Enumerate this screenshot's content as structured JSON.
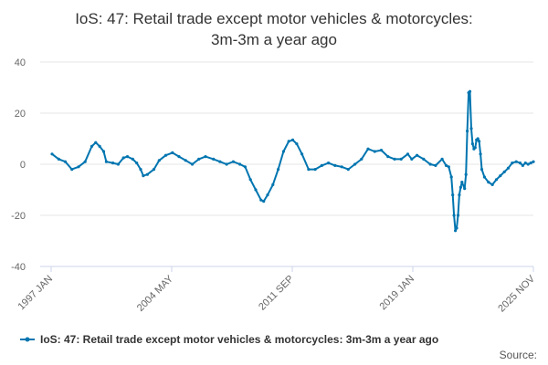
{
  "chart_data": {
    "type": "line",
    "title_lines": [
      "IoS: 47: Retail trade except motor vehicles & motorcycles:",
      "3m-3m a year ago"
    ],
    "ylim": [
      -40,
      40
    ],
    "y_ticks": [
      40,
      20,
      0,
      -20,
      -40
    ],
    "x_tick_labels": [
      "1997 JAN",
      "2004 MAY",
      "2011 SEP",
      "2019 JAN",
      "2025 NOV"
    ],
    "series": [
      {
        "name": "IoS: 47: Retail trade except motor vehicles & motorcycles: 3m-3m a year ago",
        "color": "#0075b0",
        "points": [
          [
            "1997-01",
            4.0
          ],
          [
            "1997-06",
            2.0
          ],
          [
            "1997-11",
            1.0
          ],
          [
            "1998-04",
            -2.0
          ],
          [
            "1998-09",
            -1.0
          ],
          [
            "1999-02",
            1.0
          ],
          [
            "1999-07",
            7.0
          ],
          [
            "1999-10",
            8.5
          ],
          [
            "2000-01",
            7.0
          ],
          [
            "2000-04",
            5.0
          ],
          [
            "2000-06",
            1.0
          ],
          [
            "2000-11",
            0.5
          ],
          [
            "2001-03",
            0.0
          ],
          [
            "2001-07",
            2.5
          ],
          [
            "2001-10",
            3.0
          ],
          [
            "2002-02",
            2.0
          ],
          [
            "2002-05",
            0.5
          ],
          [
            "2002-08",
            -2.0
          ],
          [
            "2002-10",
            -4.5
          ],
          [
            "2003-01",
            -4.0
          ],
          [
            "2003-06",
            -2.0
          ],
          [
            "2003-10",
            1.5
          ],
          [
            "2004-03",
            3.5
          ],
          [
            "2004-08",
            4.5
          ],
          [
            "2005-01",
            3.0
          ],
          [
            "2005-06",
            1.5
          ],
          [
            "2005-11",
            0.0
          ],
          [
            "2006-04",
            2.0
          ],
          [
            "2006-09",
            3.0
          ],
          [
            "2007-03",
            2.0
          ],
          [
            "2007-08",
            1.0
          ],
          [
            "2008-01",
            0.0
          ],
          [
            "2008-06",
            1.0
          ],
          [
            "2008-11",
            0.0
          ],
          [
            "2009-03",
            -1.0
          ],
          [
            "2009-07",
            -6.0
          ],
          [
            "2009-11",
            -10.0
          ],
          [
            "2010-03",
            -14.0
          ],
          [
            "2010-05",
            -14.5
          ],
          [
            "2010-08",
            -12.0
          ],
          [
            "2010-12",
            -8.0
          ],
          [
            "2011-04",
            -2.0
          ],
          [
            "2011-08",
            5.0
          ],
          [
            "2011-12",
            9.0
          ],
          [
            "2012-03",
            9.5
          ],
          [
            "2012-06",
            8.0
          ],
          [
            "2012-10",
            4.0
          ],
          [
            "2013-03",
            -2.0
          ],
          [
            "2013-08",
            -2.0
          ],
          [
            "2014-01",
            -0.5
          ],
          [
            "2014-06",
            0.5
          ],
          [
            "2014-11",
            -0.5
          ],
          [
            "2015-04",
            -1.0
          ],
          [
            "2015-09",
            -2.0
          ],
          [
            "2016-02",
            0.0
          ],
          [
            "2016-07",
            2.0
          ],
          [
            "2016-12",
            6.0
          ],
          [
            "2017-05",
            5.0
          ],
          [
            "2017-10",
            5.5
          ],
          [
            "2018-03",
            3.0
          ],
          [
            "2018-08",
            2.0
          ],
          [
            "2019-01",
            2.0
          ],
          [
            "2019-06",
            4.0
          ],
          [
            "2019-09",
            2.0
          ],
          [
            "2020-01",
            3.5
          ],
          [
            "2020-06",
            2.0
          ],
          [
            "2020-11",
            0.0
          ],
          [
            "2021-03",
            -0.5
          ],
          [
            "2021-08",
            2.0
          ],
          [
            "2021-11",
            -0.5
          ],
          [
            "2022-01",
            -1.0
          ],
          [
            "2022-03",
            -5.0
          ],
          [
            "2022-04",
            -12.0
          ],
          [
            "2022-05",
            -20.0
          ],
          [
            "2022-06",
            -26.0
          ],
          [
            "2022-07",
            -25.0
          ],
          [
            "2022-08",
            -20.0
          ],
          [
            "2022-09",
            -12.0
          ],
          [
            "2022-10",
            -9.0
          ],
          [
            "2022-11",
            -7.0
          ],
          [
            "2023-01",
            -9.5
          ],
          [
            "2023-02",
            -4.0
          ],
          [
            "2023-03",
            13.0
          ],
          [
            "2023-04",
            28.0
          ],
          [
            "2023-05",
            28.5
          ],
          [
            "2023-06",
            14.0
          ],
          [
            "2023-07",
            8.0
          ],
          [
            "2023-08",
            6.0
          ],
          [
            "2023-09",
            6.5
          ],
          [
            "2023-10",
            9.5
          ],
          [
            "2023-11",
            10.0
          ],
          [
            "2023-12",
            9.0
          ],
          [
            "2024-01",
            4.0
          ],
          [
            "2024-02",
            -2.0
          ],
          [
            "2024-04",
            -5.0
          ],
          [
            "2024-07",
            -7.0
          ],
          [
            "2024-10",
            -8.0
          ],
          [
            "2025-01",
            -6.0
          ],
          [
            "2025-04",
            -4.5
          ],
          [
            "2025-07",
            -3.0
          ],
          [
            "2025-10",
            -1.5
          ],
          [
            "2026-01",
            0.5
          ],
          [
            "2026-04",
            1.0
          ],
          [
            "2026-07",
            0.5
          ],
          [
            "2026-09",
            -0.5
          ],
          [
            "2026-11",
            0.5
          ],
          [
            "2027-01",
            0.0
          ],
          [
            "2027-03",
            0.5
          ],
          [
            "2027-05",
            1.0
          ]
        ]
      }
    ],
    "legend_position": "bottom",
    "source_label": "Source:"
  }
}
